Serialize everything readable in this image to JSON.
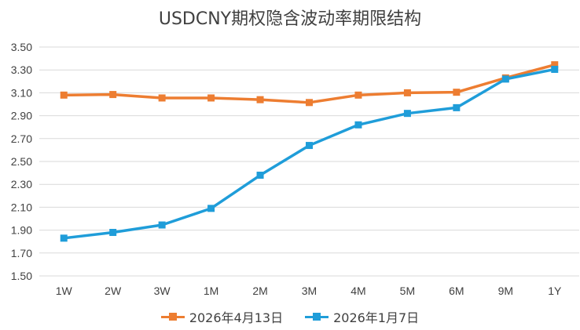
{
  "chart_data": {
    "type": "line",
    "title": "USDCNY期权隐含波动率期限结构",
    "categories": [
      "1W",
      "2W",
      "3W",
      "1M",
      "2M",
      "3M",
      "4M",
      "5M",
      "6M",
      "9M",
      "1Y"
    ],
    "ylim": [
      1.5,
      3.5
    ],
    "yticks": [
      "1.50",
      "1.70",
      "1.90",
      "2.10",
      "2.30",
      "2.50",
      "2.70",
      "2.90",
      "3.10",
      "3.30",
      "3.50"
    ],
    "grid": true,
    "legend_position": "bottom",
    "xlabel": "",
    "ylabel": "",
    "series": [
      {
        "name": "2026年4月13日",
        "color": "#ED7D31",
        "values": [
          3.08,
          3.085,
          3.055,
          3.055,
          3.04,
          3.015,
          3.08,
          3.1,
          3.105,
          3.23,
          3.345
        ]
      },
      {
        "name": "2026年1月7日",
        "color": "#1F9DD9",
        "values": [
          1.83,
          1.88,
          1.945,
          2.09,
          2.38,
          2.64,
          2.82,
          2.92,
          2.97,
          3.22,
          3.305
        ]
      }
    ]
  }
}
